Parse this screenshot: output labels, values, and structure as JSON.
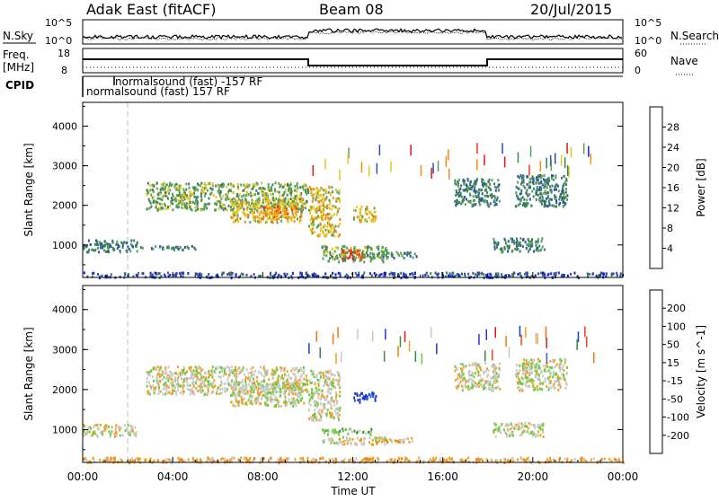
{
  "header": {
    "title": "Adak East (fitACF)",
    "beam": "Beam 08",
    "date": "20/Jul/2015"
  },
  "noise_panel": {
    "left_label": "N.Sky",
    "right_label": "N.Search",
    "left_ticks": [
      "10^5",
      "10^0"
    ],
    "right_ticks": [
      "10^5",
      "10^0"
    ]
  },
  "freq_panel": {
    "left_label_line1": "Freq.",
    "left_label_line2": "[MHz]",
    "right_label": "Nave",
    "left_ticks": [
      "18",
      "8"
    ],
    "right_ticks": [
      "60",
      "0"
    ]
  },
  "cpid_panel": {
    "label": "CPID",
    "entries": [
      "normalsound (fast) -157 RF",
      "normalsound (fast) 157 RF"
    ]
  },
  "colors": {
    "power_scale": [
      "#1a1ae6",
      "#2f4fa8",
      "#3d7f5a",
      "#5aa05a",
      "#e6c820",
      "#f08c14",
      "#e63c14",
      "#e61414"
    ],
    "velocity_scale": [
      "#1a3ad6",
      "#3a5ad6",
      "#3a8a3a",
      "#6acc3a",
      "#c8c8c8",
      "#f0a020",
      "#f07a10",
      "#f04010",
      "#e61414"
    ],
    "background": "#ffffff"
  },
  "chart_data": [
    {
      "type": "heatmap",
      "name": "power",
      "ylabel": "Slant Range [km]",
      "colorbar_label": "Power [dB]",
      "colorbar_ticks": [
        "28",
        "24",
        "20",
        "16",
        "12",
        "8",
        "4"
      ],
      "yticks": [
        "4000",
        "3000",
        "2000",
        "1000"
      ],
      "ylim": [
        180,
        4600
      ],
      "xlim": [
        "00:00",
        "24:00"
      ],
      "patches": [
        {
          "t0": 0.0,
          "t1": 2.4,
          "r0": 850,
          "r1": 1150,
          "level": 2
        },
        {
          "t0": 2.4,
          "t1": 5.0,
          "r0": 900,
          "r1": 1000,
          "level": 2
        },
        {
          "t0": 2.8,
          "t1": 10.0,
          "r0": 1900,
          "r1": 2600,
          "level": 3
        },
        {
          "t0": 6.5,
          "t1": 9.8,
          "r0": 1600,
          "r1": 2200,
          "level": 4
        },
        {
          "t0": 7.8,
          "t1": 9.6,
          "r0": 1700,
          "r1": 2000,
          "level": 5
        },
        {
          "t0": 10.0,
          "t1": 11.4,
          "r0": 1250,
          "r1": 2500,
          "level": 4
        },
        {
          "t0": 10.6,
          "t1": 13.5,
          "r0": 600,
          "r1": 1000,
          "level": 3
        },
        {
          "t0": 11.5,
          "t1": 12.4,
          "r0": 650,
          "r1": 900,
          "level": 6
        },
        {
          "t0": 12.0,
          "t1": 13.0,
          "r0": 1600,
          "r1": 2000,
          "level": 4
        },
        {
          "t0": 12.4,
          "t1": 14.8,
          "r0": 700,
          "r1": 850,
          "level": 2
        },
        {
          "t0": 16.5,
          "t1": 18.5,
          "r0": 2000,
          "r1": 2700,
          "level": 2
        },
        {
          "t0": 18.2,
          "t1": 20.5,
          "r0": 850,
          "r1": 1200,
          "level": 2
        },
        {
          "t0": 19.2,
          "t1": 21.5,
          "r0": 2000,
          "r1": 2800,
          "level": 2
        },
        {
          "t0": 0.0,
          "t1": 24.0,
          "r0": 200,
          "r1": 330,
          "level": 1
        }
      ]
    },
    {
      "type": "heatmap",
      "name": "velocity",
      "ylabel": "Slant Range [km]",
      "colorbar_label": "Velocity [m s^-1]",
      "colorbar_ticks": [
        "200",
        "100",
        "50",
        "15",
        "-15",
        "-50",
        "-100",
        "-200"
      ],
      "yticks": [
        "4000",
        "3000",
        "2000",
        "1000"
      ],
      "xticks": [
        "00:00",
        "04:00",
        "08:00",
        "12:00",
        "16:00",
        "20:00",
        "00:00"
      ],
      "xlabel": "Time UT",
      "ylim": [
        180,
        4600
      ],
      "xlim": [
        "00:00",
        "24:00"
      ],
      "patches": [
        {
          "t0": 0.0,
          "t1": 2.4,
          "r0": 850,
          "r1": 1150,
          "level": 4
        },
        {
          "t0": 2.8,
          "t1": 10.0,
          "r0": 1900,
          "r1": 2600,
          "level": 4
        },
        {
          "t0": 6.5,
          "t1": 9.8,
          "r0": 1600,
          "r1": 2200,
          "level": 4
        },
        {
          "t0": 10.0,
          "t1": 11.4,
          "r0": 1250,
          "r1": 2500,
          "level": 4
        },
        {
          "t0": 10.6,
          "t1": 12.8,
          "r0": 900,
          "r1": 1050,
          "level": 3
        },
        {
          "t0": 10.6,
          "t1": 13.5,
          "r0": 650,
          "r1": 850,
          "level": 4
        },
        {
          "t0": 13.0,
          "t1": 14.8,
          "r0": 700,
          "r1": 820,
          "level": 5
        },
        {
          "t0": 12.0,
          "t1": 13.0,
          "r0": 1700,
          "r1": 1950,
          "level": 0
        },
        {
          "t0": 16.5,
          "t1": 18.5,
          "r0": 2000,
          "r1": 2700,
          "level": 4
        },
        {
          "t0": 18.2,
          "t1": 20.5,
          "r0": 850,
          "r1": 1200,
          "level": 4
        },
        {
          "t0": 19.2,
          "t1": 21.5,
          "r0": 2000,
          "r1": 2800,
          "level": 4
        },
        {
          "t0": 0.0,
          "t1": 24.0,
          "r0": 200,
          "r1": 330,
          "level": 5
        }
      ]
    }
  ]
}
